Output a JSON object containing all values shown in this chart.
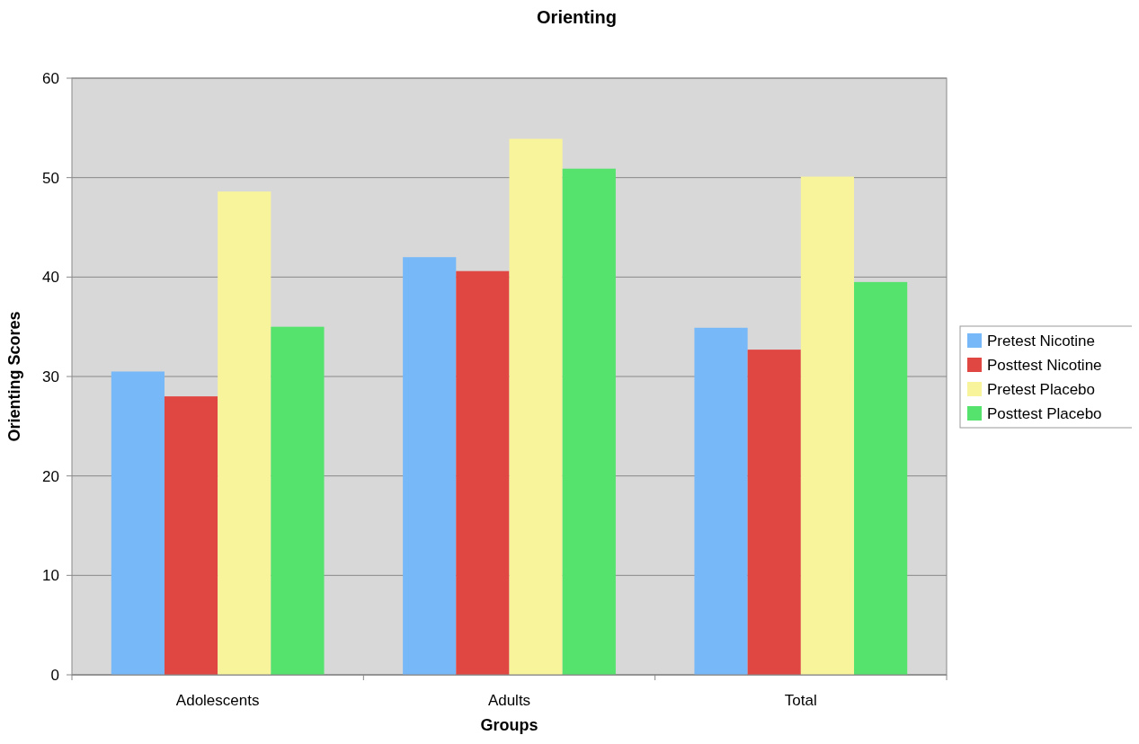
{
  "chart_data": {
    "type": "bar",
    "title": "Orienting",
    "xlabel": "Groups",
    "ylabel": "Orienting Scores",
    "categories": [
      "Adolescents",
      "Adults",
      "Total"
    ],
    "series": [
      {
        "name": "Pretest Nicotine",
        "color": "#77b8f8",
        "values": [
          30.5,
          42.0,
          34.9
        ]
      },
      {
        "name": "Posttest Nicotine",
        "color": "#e04642",
        "values": [
          28.0,
          40.6,
          32.7
        ]
      },
      {
        "name": "Pretest Placebo",
        "color": "#f8f49c",
        "values": [
          48.6,
          53.9,
          50.1
        ]
      },
      {
        "name": "Posttest Placebo",
        "color": "#55e36d",
        "values": [
          35.0,
          50.9,
          39.5
        ]
      }
    ],
    "ylim": [
      0,
      60
    ],
    "yticks": [
      0,
      10,
      20,
      30,
      40,
      50,
      60
    ],
    "grid": "y",
    "legend": "right"
  }
}
